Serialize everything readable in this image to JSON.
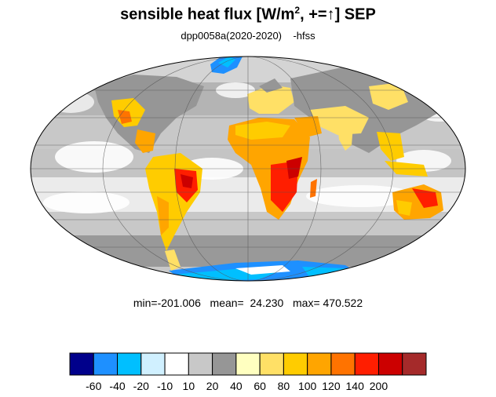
{
  "title": {
    "main": "sensible heat flux [W/m",
    "sup": "2",
    "after": ", +=",
    "arrow": "↑",
    "end": "]  SEP"
  },
  "subtitle": "dpp0058a(2020-2020)    -hfss",
  "stats": "min=-201.006   mean=  24.230   max= 470.522",
  "colorbar": {
    "colors": [
      "#00008b",
      "#1e90ff",
      "#00bfff",
      "#d0f0ff",
      "#ffffff",
      "#c8c8c8",
      "#969696",
      "#ffffc0",
      "#ffe066",
      "#ffcc00",
      "#ffa500",
      "#ff7300",
      "#ff1e00",
      "#cc0000",
      "#a52a2a"
    ],
    "labels": [
      "-60",
      "-40",
      "-20",
      "-10",
      "10",
      "20",
      "40",
      "60",
      "80",
      "100",
      "120",
      "140",
      "200"
    ]
  }
}
